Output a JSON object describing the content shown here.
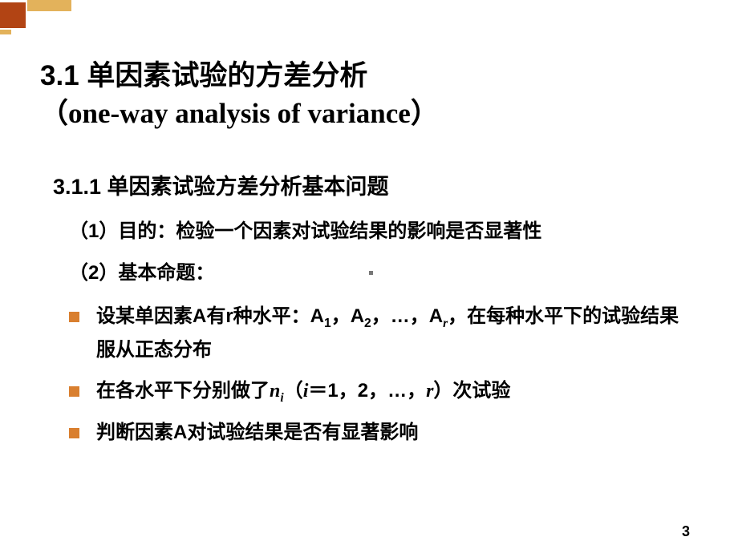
{
  "decoration": {
    "big_color": "#b24414",
    "accent_color": "#e3b25b"
  },
  "title": {
    "line1": "3.1 单因素试验的方差分析",
    "line2_open": "（",
    "line2_text": "one-way analysis of variance",
    "line2_close": "）"
  },
  "subtitle": "3.1.1  单因素试验方差分析基本问题",
  "points": {
    "p1": "（1）目的：检验一个因素对试验结果的影响是否显著性",
    "p2": "（2）基本命题："
  },
  "bullets": {
    "b1_pre": "设某单因素A有r种水平：A",
    "b1_s1": "1",
    "b1_mid1": "，A",
    "b1_s2": "2",
    "b1_mid2": "，…，A",
    "b1_s3": "r",
    "b1_post": "，在每种水平下的试验结果服从正态分布",
    "b2_pre": "在各水平下分别做了",
    "b2_n": "n",
    "b2_i": "i",
    "b2_open": "（",
    "b2_ivar": "i",
    "b2_eq": "＝1，2，…，",
    "b2_r": "r",
    "b2_close": "）次试验",
    "b3": "判断因素A对试验结果是否有显著影响"
  },
  "page_number": "3"
}
